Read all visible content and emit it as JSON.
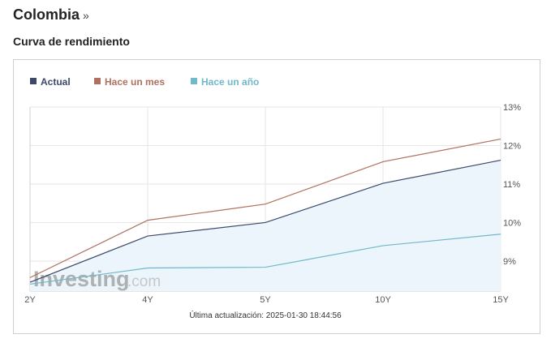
{
  "header": {
    "title": "Colombia",
    "arrow": "»"
  },
  "section": {
    "title": "Curva de rendimiento"
  },
  "chart_data": {
    "type": "line",
    "categories": [
      "2Y",
      "4Y",
      "5Y",
      "10Y",
      "15Y"
    ],
    "series": [
      {
        "name": "Actual",
        "color": "#3b4a6b",
        "values": [
          8.45,
          9.65,
          10.0,
          11.02,
          11.62
        ],
        "fill": "#ecf5fc"
      },
      {
        "name": "Hace un mes",
        "color": "#b0705f",
        "values": [
          8.57,
          10.06,
          10.48,
          11.58,
          12.17
        ]
      },
      {
        "name": "Hace un año",
        "color": "#6fb9c9",
        "values": [
          8.4,
          8.82,
          8.84,
          9.4,
          9.7
        ]
      }
    ],
    "y_axis": {
      "ticks": [
        9,
        10,
        11,
        12,
        13
      ],
      "tick_labels": [
        "9%",
        "10%",
        "11%",
        "12%",
        "13%"
      ],
      "range": [
        8.22,
        13.0
      ],
      "position": "right"
    },
    "grid": true,
    "legend_position": "top-left",
    "footer": "Última actualización: 2025-01-30 18:44:56",
    "watermark": {
      "brand": "Investing",
      "suffix": ".com"
    }
  }
}
